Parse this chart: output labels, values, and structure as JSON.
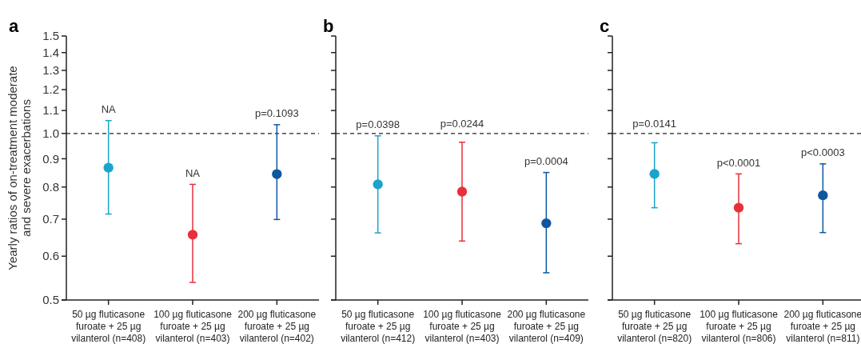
{
  "chart_data": [
    {
      "type": "scatter",
      "title": "a",
      "ylabel": "Yearly ratios of on-treatment moderate and severe exacerbations",
      "categories": [
        "50 µg fluticasone furoate + 25 µg vilanterol (n=408)",
        "100 µg fluticasone furoate + 25 µg vilanterol (n=403)",
        "200 µg fluticasone furoate + 25 µg vilanterol (n=402)"
      ],
      "series": [
        {
          "values": [
            0.867,
            0.656,
            0.844
          ],
          "colors": [
            "#1ba3cc",
            "#e8303a",
            "#0d57a0"
          ],
          "errors": [
            [
              0.715,
              1.055
            ],
            [
              0.538,
              0.809
            ],
            [
              0.699,
              1.037
            ]
          ]
        }
      ],
      "ylim": [
        0.5,
        1.5
      ],
      "yticks": [
        0.5,
        0.6,
        0.7,
        0.8,
        0.9,
        {
          "value": 1,
          "label": "1.0"
        },
        1.1,
        1.2,
        1.3,
        1.4,
        1.5
      ],
      "log": true,
      "marker": "circle",
      "ref_lines": [
        {
          "axis": "y",
          "value": 1,
          "line_style": "dashed"
        }
      ],
      "annotations": [
        {
          "text": "NA",
          "x": "50 µg fluticasone furoate + 25 µg vilanterol (n=408)",
          "y": 1.055
        },
        {
          "text": "NA",
          "x": "100 µg fluticasone furoate + 25 µg vilanterol (n=403)",
          "y": 0.809
        },
        {
          "text": "p=0.1093",
          "x": "200 µg fluticasone furoate + 25 µg vilanterol (n=402)",
          "y": 1.037
        }
      ]
    },
    {
      "type": "scatter",
      "title": "b",
      "categories": [
        "50 µg fluticasone furoate + 25 µg vilanterol (n=412)",
        "100 µg fluticasone furoate + 25 µg vilanterol (n=403)",
        "200 µg fluticasone furoate + 25 µg vilanterol (n=409)"
      ],
      "series": [
        {
          "values": [
            0.809,
            0.785,
            0.688
          ],
          "colors": [
            "#1ba3cc",
            "#e8303a",
            "#0d57a0"
          ],
          "errors": [
            [
              0.661,
              0.99
            ],
            [
              0.639,
              0.964
            ],
            [
              0.56,
              0.85
            ]
          ]
        }
      ],
      "ylim": [
        0.5,
        1.5
      ],
      "yticks": [
        0.5,
        0.6,
        0.7,
        0.8,
        0.9,
        1,
        1.1,
        1.2,
        1.3,
        1.4,
        1.5
      ],
      "log": true,
      "marker": "circle",
      "tick_labels": "x",
      "ref_lines": [
        {
          "axis": "y",
          "value": 1,
          "line_style": "dashed"
        }
      ],
      "annotations": [
        {
          "text": "p=0.0398",
          "x": "50 µg fluticasone furoate + 25 µg vilanterol (n=412)",
          "y": 0.99
        },
        {
          "text": "p=0.0244",
          "x": "100 µg fluticasone furoate + 25 µg vilanterol (n=403)",
          "y": 0.964
        },
        {
          "text": "p=0.0004",
          "x": "200 µg fluticasone furoate + 25 µg vilanterol (n=409)",
          "y": 0.85
        }
      ]
    },
    {
      "type": "scatter",
      "title": "c",
      "categories": [
        "50 µg fluticasone furoate + 25 µg vilanterol (n=820)",
        "100 µg fluticasone furoate + 25 µg vilanterol (n=806)",
        "200 µg fluticasone furoate + 25 µg vilanterol (n=811)"
      ],
      "series": [
        {
          "values": [
            0.845,
            0.734,
            0.773
          ],
          "colors": [
            "#1ba3cc",
            "#e8303a",
            "#0d57a0"
          ],
          "errors": [
            [
              0.734,
              0.962
            ],
            [
              0.632,
              0.845
            ],
            [
              0.662,
              0.881
            ]
          ]
        }
      ],
      "ylim": [
        0.5,
        1.5
      ],
      "yticks": [
        0.5,
        0.6,
        0.7,
        0.8,
        0.9,
        1,
        1.1,
        1.2,
        1.3,
        1.4,
        1.5
      ],
      "log": true,
      "marker": "circle",
      "tick_labels": "x",
      "ref_lines": [
        {
          "axis": "y",
          "value": 1,
          "line_style": "dashed"
        }
      ],
      "annotations": [
        {
          "text": "p=0.0141",
          "x": "50 µg fluticasone furoate + 25 µg vilanterol (n=820)",
          "y": 0.962
        },
        {
          "text": "p<0.0001",
          "x": "100 µg fluticasone furoate + 25 µg vilanterol (n=806)",
          "y": 0.845
        },
        {
          "text": "p<0.0003",
          "x": "200 µg fluticasone furoate + 25 µg vilanterol (n=811)",
          "y": 0.881
        }
      ]
    }
  ]
}
